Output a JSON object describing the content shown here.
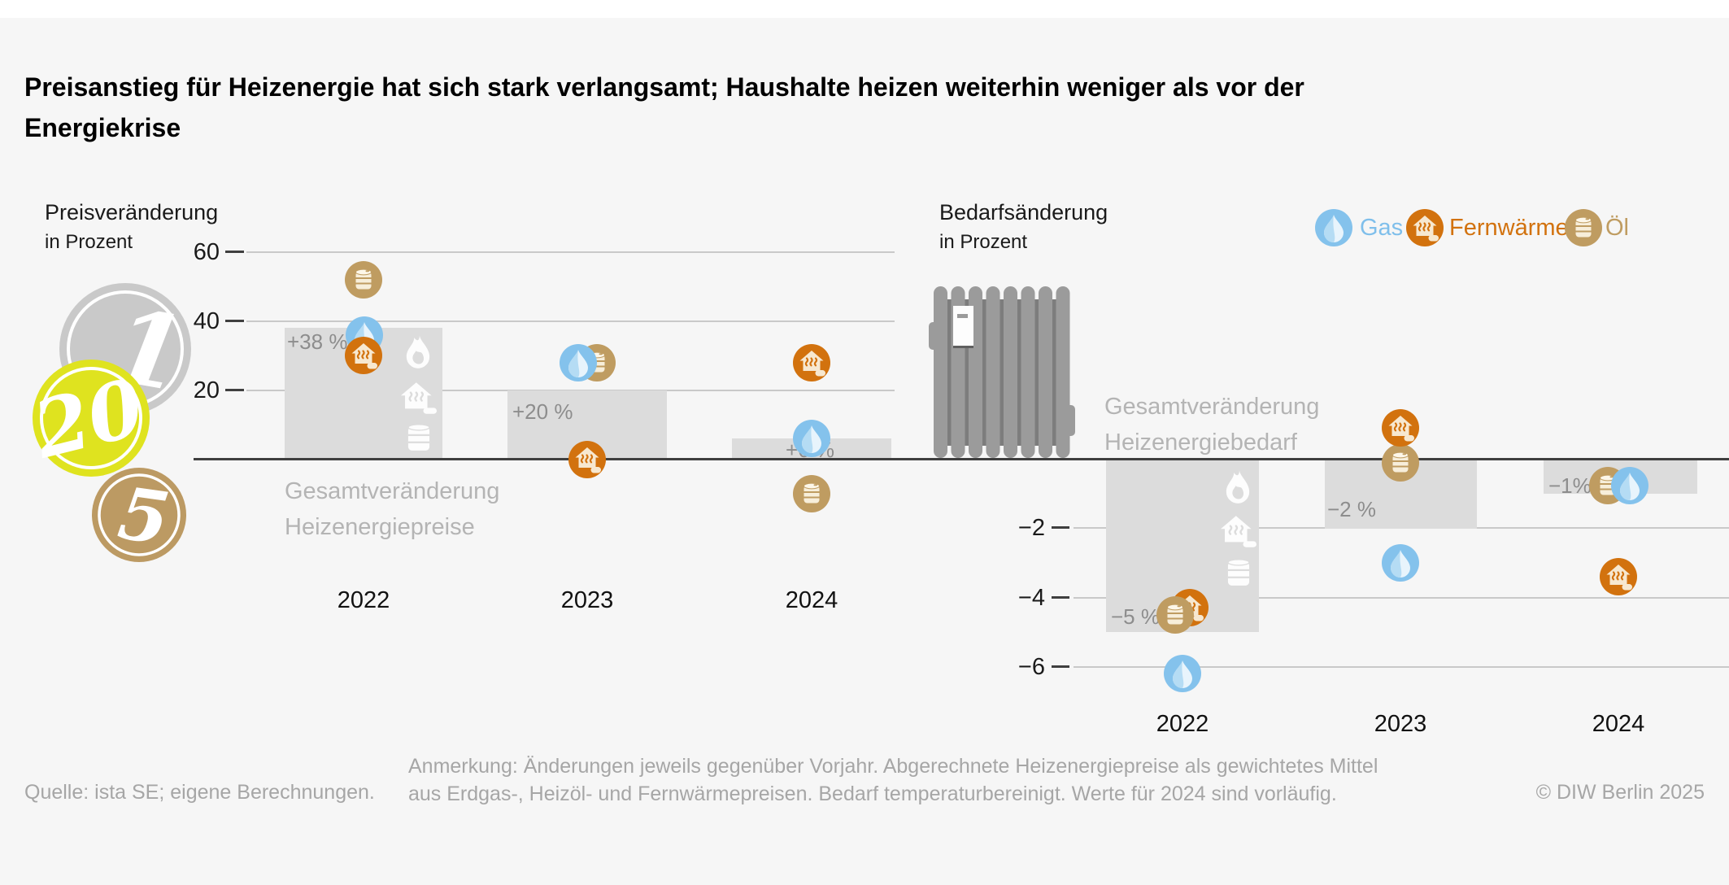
{
  "title": {
    "line1": "Preisanstieg für Heizenergie hat sich stark verlangsamt; Haushalte heizen weiterhin weniger als vor der",
    "line2": "Energiekrise"
  },
  "legend": {
    "items": [
      {
        "label": "Gas",
        "icon": "gas-drop-icon",
        "color": "#7fbfeb"
      },
      {
        "label": "Fernwärme",
        "icon": "district-heating-icon",
        "color": "#d2720e"
      },
      {
        "label": "Öl",
        "icon": "oil-barrel-icon",
        "color": "#bf9c61"
      }
    ]
  },
  "illustrations": {
    "coins": [
      {
        "value": "1",
        "color": "#c9c9c9"
      },
      {
        "value": "20",
        "color": "#dfe31f"
      },
      {
        "value": "5",
        "color": "#bc9a63"
      }
    ],
    "radiator": "radiator with thermostat"
  },
  "chart_data": [
    {
      "type": "bar",
      "title": "Preisveränderung",
      "subtitle": "in Prozent",
      "categories": [
        "2022",
        "2023",
        "2024"
      ],
      "yticks": [
        "60",
        "40",
        "20"
      ],
      "ylim": [
        -14,
        66
      ],
      "grid": true,
      "legend_position": "top-right",
      "annotation": {
        "line1": "Gesamtveränderung",
        "line2": "Heizenergiepreise"
      },
      "series": [
        {
          "name": "Gesamtveränderung Heizenergiepreise",
          "role": "bar",
          "values": [
            38,
            20,
            6
          ],
          "value_labels": [
            "+38 %",
            "+20 %",
            "+6 %"
          ]
        },
        {
          "name": "Gas",
          "role": "point",
          "values": [
            36,
            28,
            6
          ]
        },
        {
          "name": "Fernwärme",
          "role": "point",
          "values": [
            30,
            0,
            28
          ]
        },
        {
          "name": "Öl",
          "role": "point",
          "values": [
            52,
            28,
            -10
          ]
        }
      ]
    },
    {
      "type": "bar",
      "title": "Bedarfsänderung",
      "subtitle": "in Prozent",
      "categories": [
        "2022",
        "2023",
        "2024"
      ],
      "yticks": [
        "−2",
        "−4",
        "−6"
      ],
      "ylim": [
        -7.5,
        1.5
      ],
      "grid": true,
      "annotation": {
        "line1": "Gesamtveränderung",
        "line2": "Heizenergiebedarf"
      },
      "series": [
        {
          "name": "Gesamtveränderung Heizenergiebedarf",
          "role": "bar",
          "values": [
            -5,
            -2,
            -1
          ],
          "value_labels": [
            "−5 %",
            "−2 %",
            "−1%"
          ]
        },
        {
          "name": "Gas",
          "role": "point",
          "values": [
            -6.2,
            -3,
            -0.76
          ]
        },
        {
          "name": "Fernwärme",
          "role": "point",
          "values": [
            -4.3,
            0.9,
            -3.4
          ]
        },
        {
          "name": "Öl",
          "role": "point",
          "values": [
            -4.5,
            -0.1,
            -0.77
          ]
        }
      ]
    }
  ],
  "footer": {
    "source": "Quelle: ista SE; eigene Berechnungen.",
    "note_line1": "Anmerkung: Änderungen jeweils gegenüber Vorjahr. Abgerechnete Heizenergiepreise als gewichtetes Mittel",
    "note_line2": "aus Erdgas-, Heizöl- und Fernwärmepreisen. Bedarf temperaturbereinigt. Werte für 2024 sind vorläufig.",
    "copyright": "© DIW Berlin 2025"
  }
}
